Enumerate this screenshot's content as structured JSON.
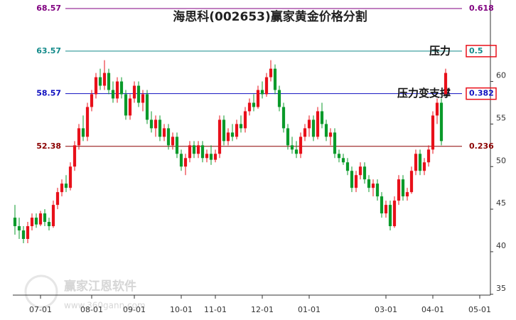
{
  "chart_data": {
    "type": "candlestick",
    "title": "海思科(002653)赢家黄金价格分割",
    "watermark": [
      "赢家江恩软件",
      "www.360gann.com"
    ],
    "up_color": "#e8101a",
    "down_color": "#0a9a2a",
    "ylim": [
      34.9,
      69.57
    ],
    "yticks": [
      35,
      40,
      45,
      50,
      55,
      60
    ],
    "levels": [
      {
        "price": 68.57,
        "ratio": 0.618,
        "color": "#800080"
      },
      {
        "price": 63.57,
        "ratio": 0.5,
        "color": "#138a8a",
        "highlight": true,
        "note": "压力"
      },
      {
        "price": 58.57,
        "ratio": 0.382,
        "color": "#1010c0",
        "highlight": true,
        "note": "压力变支撑"
      },
      {
        "price": 52.38,
        "ratio": 0.236,
        "color": "#8b0000"
      }
    ],
    "categories": [
      null,
      null,
      null,
      null,
      null,
      null,
      "07-01",
      null,
      null,
      null,
      null,
      null,
      null,
      null,
      null,
      null,
      null,
      null,
      "08-01",
      null,
      null,
      null,
      null,
      null,
      null,
      null,
      null,
      null,
      "09-01",
      null,
      null,
      null,
      null,
      null,
      null,
      null,
      null,
      null,
      null,
      "10-01",
      null,
      null,
      null,
      null,
      null,
      null,
      null,
      "11-01",
      null,
      null,
      null,
      null,
      null,
      null,
      null,
      null,
      null,
      null,
      "12-01",
      null,
      null,
      null,
      null,
      null,
      null,
      null,
      null,
      null,
      null,
      "01-01",
      null,
      null,
      null,
      null,
      null,
      null,
      null,
      null,
      null,
      null,
      null,
      null,
      null,
      null,
      null,
      null,
      null,
      "03-01",
      null,
      null,
      null,
      null,
      null,
      null,
      null,
      null,
      null,
      null,
      "04-01",
      null,
      null,
      null,
      null,
      null,
      null,
      null,
      null,
      null,
      null,
      "05-01",
      null,
      null
    ],
    "candles": [
      [
        44,
        45.5,
        42,
        43
      ],
      [
        43,
        44,
        41.5,
        42.5
      ],
      [
        42.5,
        43,
        41,
        41.5
      ],
      [
        41.5,
        43.5,
        41,
        43
      ],
      [
        43,
        44.5,
        42.5,
        44
      ],
      [
        44,
        44.5,
        42.8,
        43.2
      ],
      [
        43.2,
        44.8,
        43,
        44.5
      ],
      [
        44.5,
        45,
        43,
        43.5
      ],
      [
        43.5,
        44,
        42.5,
        43
      ],
      [
        43,
        46,
        42.8,
        45.5
      ],
      [
        45.5,
        47.5,
        45,
        47
      ],
      [
        47,
        48.5,
        46.5,
        48
      ],
      [
        48,
        49,
        47,
        47.5
      ],
      [
        47.5,
        50.5,
        47.2,
        50
      ],
      [
        50,
        53,
        49.5,
        52.5
      ],
      [
        52.5,
        55,
        52,
        54.5
      ],
      [
        54.5,
        56,
        53,
        53.5
      ],
      [
        53.5,
        57.5,
        53,
        57
      ],
      [
        57,
        59,
        56.5,
        58.5
      ],
      [
        58.5,
        61,
        58,
        60.5
      ],
      [
        60.5,
        61.5,
        59,
        59.5
      ],
      [
        59.5,
        62.5,
        59,
        61
      ],
      [
        61,
        61.5,
        58.5,
        59
      ],
      [
        59,
        60,
        57.5,
        58
      ],
      [
        58,
        60.5,
        57.5,
        60
      ],
      [
        60,
        60.5,
        58,
        58.5
      ],
      [
        58.5,
        59,
        55.5,
        56
      ],
      [
        56,
        58.5,
        55.5,
        58
      ],
      [
        58,
        60,
        57.5,
        59.5
      ],
      [
        59.5,
        60,
        57,
        57.5
      ],
      [
        57.5,
        59,
        56.5,
        58.5
      ],
      [
        58.5,
        59,
        55,
        55.5
      ],
      [
        55.5,
        56.5,
        54,
        54.5
      ],
      [
        54.5,
        56,
        53.5,
        55.5
      ],
      [
        55.5,
        56,
        53,
        53.5
      ],
      [
        53.5,
        55,
        53,
        54.5
      ],
      [
        54.5,
        55,
        52,
        52.5
      ],
      [
        52.5,
        54,
        52,
        53.5
      ],
      [
        53.5,
        54,
        51,
        51.5
      ],
      [
        51.5,
        52,
        49.5,
        50
      ],
      [
        50,
        51.5,
        49,
        51
      ],
      [
        51,
        53,
        50.5,
        52.5
      ],
      [
        52.5,
        53,
        51,
        51.5
      ],
      [
        51.5,
        53,
        51,
        52.5
      ],
      [
        52.5,
        53,
        50.5,
        51
      ],
      [
        51,
        52,
        50.5,
        51.5
      ],
      [
        51.5,
        52.5,
        50.2,
        50.8
      ],
      [
        50.8,
        52,
        50.5,
        51.5
      ],
      [
        51.5,
        56,
        51,
        55.5
      ],
      [
        55.5,
        56,
        52.5,
        53
      ],
      [
        53,
        54.5,
        52.5,
        54
      ],
      [
        54,
        55,
        53,
        53.5
      ],
      [
        53.5,
        55.5,
        53.2,
        55
      ],
      [
        55,
        56,
        54,
        54.5
      ],
      [
        54.5,
        57,
        54,
        56.5
      ],
      [
        56.5,
        58,
        56,
        57.5
      ],
      [
        57.5,
        58.5,
        56.5,
        57
      ],
      [
        57,
        59.5,
        56.8,
        59
      ],
      [
        59,
        60,
        58,
        58.5
      ],
      [
        58.5,
        61,
        58.2,
        60.5
      ],
      [
        60.5,
        62.5,
        60,
        61.5
      ],
      [
        61.5,
        62,
        58.5,
        59
      ],
      [
        59,
        59.5,
        56.5,
        57
      ],
      [
        57,
        57.5,
        54,
        54.5
      ],
      [
        54.5,
        55,
        52,
        52.5
      ],
      [
        52.5,
        53.5,
        51.5,
        52
      ],
      [
        52,
        53,
        51,
        51.5
      ],
      [
        51.5,
        54,
        51,
        53.5
      ],
      [
        53.5,
        55,
        53,
        54.5
      ],
      [
        54.5,
        56,
        53.5,
        55.5
      ],
      [
        55.5,
        56,
        53,
        53.5
      ],
      [
        53.5,
        57,
        53.2,
        56.5
      ],
      [
        56.5,
        57.5,
        54.5,
        55
      ],
      [
        55,
        55.5,
        53,
        53.5
      ],
      [
        53.5,
        54.5,
        52.5,
        54
      ],
      [
        54,
        54.5,
        51,
        51.5
      ],
      [
        51.5,
        52,
        50.5,
        51
      ],
      [
        51,
        51.5,
        50.2,
        50.5
      ],
      [
        50.5,
        51,
        49,
        49.5
      ],
      [
        49.5,
        50,
        47,
        47.5
      ],
      [
        47.5,
        49.5,
        47,
        49
      ],
      [
        49,
        50.5,
        48.5,
        50
      ],
      [
        50,
        50.5,
        48,
        48.5
      ],
      [
        48.5,
        49,
        47,
        47.5
      ],
      [
        47.5,
        48.5,
        46.5,
        48
      ],
      [
        48,
        48.5,
        46,
        46.5
      ],
      [
        46.5,
        47,
        44,
        44.5
      ],
      [
        44.5,
        46,
        44,
        45.5
      ],
      [
        45.5,
        46,
        42.5,
        43
      ],
      [
        43,
        46.5,
        42.8,
        46
      ],
      [
        46,
        49,
        45.5,
        48.5
      ],
      [
        48.5,
        49,
        46,
        46.5
      ],
      [
        46.5,
        47.5,
        46,
        47
      ],
      [
        47,
        50,
        46.8,
        49.5
      ],
      [
        49.5,
        52,
        49,
        51.5
      ],
      [
        51.5,
        52,
        49,
        49.5
      ],
      [
        49.5,
        51,
        49,
        50.5
      ],
      [
        50.5,
        52.5,
        50,
        52
      ],
      [
        52,
        56.5,
        51.5,
        56
      ],
      [
        56,
        58,
        55,
        57.5
      ],
      [
        57.5,
        58,
        52.5,
        53
      ],
      [
        58.5,
        61.5,
        58.5,
        61
      ]
    ]
  }
}
